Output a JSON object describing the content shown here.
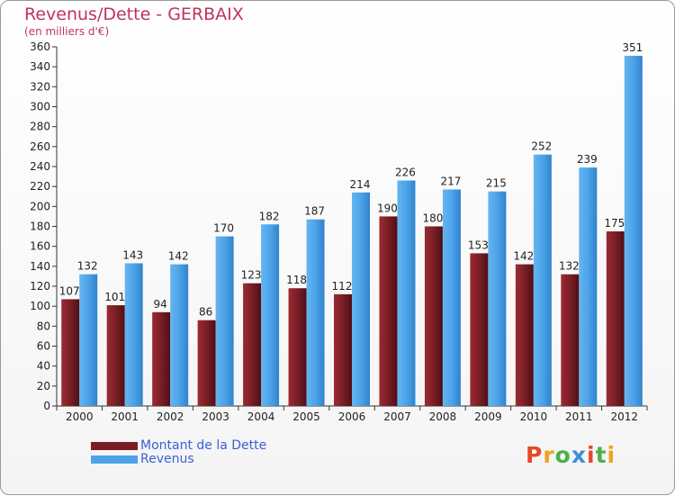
{
  "chart_data": {
    "type": "bar",
    "title": "Revenus/Dette - GERBAIX",
    "subtitle": "(en milliers d'€)",
    "categories": [
      "2000",
      "2001",
      "2002",
      "2003",
      "2004",
      "2005",
      "2006",
      "2007",
      "2008",
      "2009",
      "2010",
      "2011",
      "2012"
    ],
    "series": [
      {
        "name": "Montant de la Dette",
        "color": "#7a1e25",
        "values": [
          107,
          101,
          94,
          86,
          123,
          118,
          112,
          190,
          180,
          153,
          142,
          132,
          175
        ]
      },
      {
        "name": "Revenus",
        "color": "#4da3e8",
        "values": [
          132,
          143,
          142,
          170,
          182,
          187,
          214,
          226,
          217,
          215,
          252,
          239,
          351
        ]
      }
    ],
    "ylim": [
      0,
      360
    ],
    "yticks": [
      0,
      20,
      40,
      60,
      80,
      100,
      120,
      140,
      160,
      180,
      200,
      220,
      240,
      260,
      280,
      300,
      320,
      340,
      360
    ],
    "grid": false,
    "legend": "bottom-left"
  },
  "logo": {
    "text": "Proxiti",
    "colors": [
      "#e8472a",
      "#f2a11b",
      "#4bb04a",
      "#3b8fd6",
      "#e8472a",
      "#4bb04a",
      "#f2a11b"
    ]
  }
}
